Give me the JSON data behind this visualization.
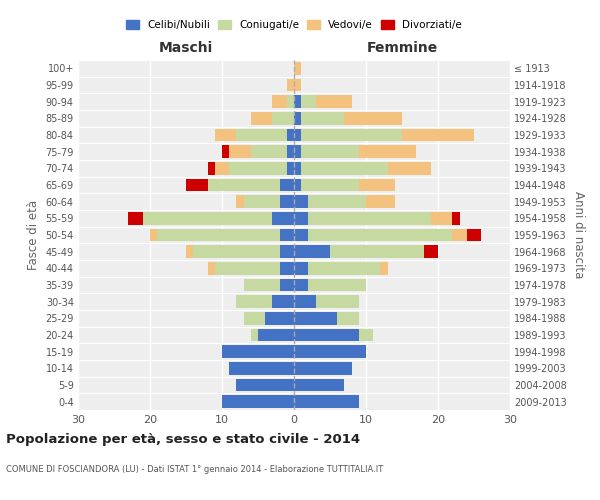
{
  "age_groups": [
    "0-4",
    "5-9",
    "10-14",
    "15-19",
    "20-24",
    "25-29",
    "30-34",
    "35-39",
    "40-44",
    "45-49",
    "50-54",
    "55-59",
    "60-64",
    "65-69",
    "70-74",
    "75-79",
    "80-84",
    "85-89",
    "90-94",
    "95-99",
    "100+"
  ],
  "birth_years": [
    "2009-2013",
    "2004-2008",
    "1999-2003",
    "1994-1998",
    "1989-1993",
    "1984-1988",
    "1979-1983",
    "1974-1978",
    "1969-1973",
    "1964-1968",
    "1959-1963",
    "1954-1958",
    "1949-1953",
    "1944-1948",
    "1939-1943",
    "1934-1938",
    "1929-1933",
    "1924-1928",
    "1919-1923",
    "1914-1918",
    "≤ 1913"
  ],
  "colors": {
    "celibi": "#4472c4",
    "coniugati": "#c5d9a0",
    "vedovi": "#f4c27f",
    "divorziati": "#cc0000"
  },
  "males": {
    "celibi": [
      10,
      8,
      9,
      10,
      5,
      4,
      3,
      2,
      2,
      2,
      2,
      3,
      2,
      2,
      1,
      1,
      1,
      0,
      0,
      0,
      0
    ],
    "coniugati": [
      0,
      0,
      0,
      0,
      1,
      3,
      5,
      5,
      9,
      12,
      17,
      18,
      5,
      10,
      8,
      5,
      7,
      3,
      1,
      0,
      0
    ],
    "vedovi": [
      0,
      0,
      0,
      0,
      0,
      0,
      0,
      0,
      1,
      1,
      1,
      0,
      1,
      0,
      2,
      3,
      3,
      3,
      2,
      1,
      0
    ],
    "divorziati": [
      0,
      0,
      0,
      0,
      0,
      0,
      0,
      0,
      0,
      0,
      0,
      2,
      0,
      3,
      1,
      1,
      0,
      0,
      0,
      0,
      0
    ]
  },
  "females": {
    "celibi": [
      9,
      7,
      8,
      10,
      9,
      6,
      3,
      2,
      2,
      5,
      2,
      2,
      2,
      1,
      1,
      1,
      1,
      1,
      1,
      0,
      0
    ],
    "coniugati": [
      0,
      0,
      0,
      0,
      2,
      3,
      6,
      8,
      10,
      13,
      20,
      17,
      8,
      8,
      12,
      8,
      14,
      6,
      2,
      0,
      0
    ],
    "vedovi": [
      0,
      0,
      0,
      0,
      0,
      0,
      0,
      0,
      1,
      0,
      2,
      3,
      4,
      5,
      6,
      8,
      10,
      8,
      5,
      1,
      1
    ],
    "divorziati": [
      0,
      0,
      0,
      0,
      0,
      0,
      0,
      0,
      0,
      2,
      2,
      1,
      0,
      0,
      0,
      0,
      0,
      0,
      0,
      0,
      0
    ]
  },
  "xlim": 30,
  "title": "Popolazione per età, sesso e stato civile - 2014",
  "subtitle": "COMUNE DI FOSCIANDORA (LU) - Dati ISTAT 1° gennaio 2014 - Elaborazione TUTTITALIA.IT",
  "ylabel_left": "Fasce di età",
  "ylabel_right": "Anni di nascita",
  "xlabel_left": "Maschi",
  "xlabel_right": "Femmine",
  "legend_labels": [
    "Celibi/Nubili",
    "Coniugati/e",
    "Vedovi/e",
    "Divorziati/e"
  ],
  "background_color": "#ffffff",
  "bar_height": 0.75
}
